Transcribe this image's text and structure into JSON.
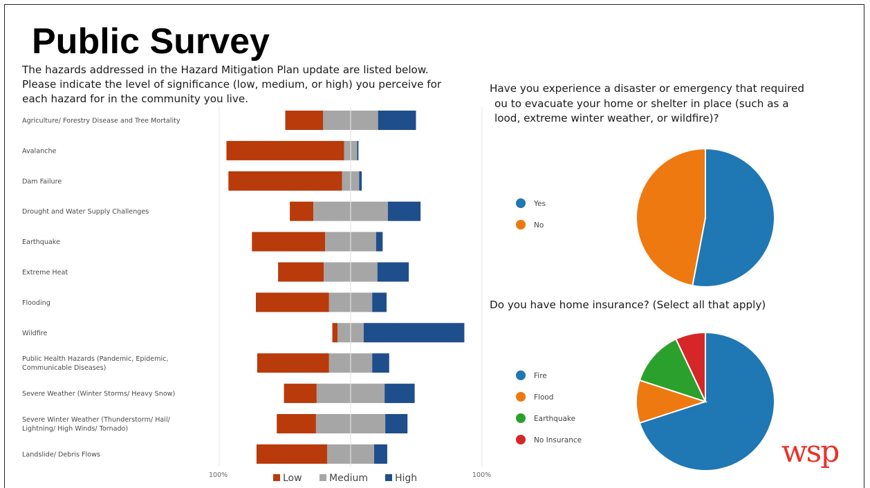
{
  "title": "Public Survey",
  "intro": [
    "The hazards addressed in the Hazard Mitigation Plan update are listed below.",
    "Please indicate the level of significance (low, medium, or high) you perceive for",
    "each hazard for in the community you live."
  ],
  "question1": [
    "Have you experience a disaster or emergency that required",
    "ou to evacuate your home or shelter in place (such as a",
    "lood, extreme winter weather, or wildfire)?"
  ],
  "question2": "Do you have home insurance? (Select all that apply)",
  "logo_text": "wsp",
  "colors": {
    "low": "#b93a0a",
    "medium": "#a6a6a6",
    "high": "#1f4e8c",
    "pie_blue": "#1f77b4",
    "pie_orange": "#ee7910",
    "pie_green": "#2ca02c",
    "pie_red": "#d62728",
    "logo": "#e8332a"
  },
  "chart_data": [
    {
      "type": "bar",
      "subtype": "diverging-stacked",
      "categories": [
        "Agriculture/ Forestry Disease and Tree Mortality",
        "Avalanche",
        "Dam Failure",
        "Drought and Water Supply Challenges",
        "Earthquake",
        "Extreme Heat",
        "Flooding",
        "Wildfire",
        "Public Health Hazards (Pandemic, Epidemic, Communicable Diseases)",
        "Severe Weather (Winter Storms/ Heavy Snow)",
        "Severe Winter Weather (Thunderstorm/ Hail/ Lightning/ High Winds/ Tornado)",
        "Landslide/ Debris Flows"
      ],
      "series": [
        {
          "name": "Low",
          "values": [
            29,
            90,
            87,
            18,
            56,
            35,
            56,
            4,
            55,
            25,
            30,
            54
          ]
        },
        {
          "name": "Medium",
          "values": [
            42,
            10,
            13,
            57,
            39,
            41,
            33,
            20,
            33,
            52,
            53,
            36
          ]
        },
        {
          "name": "High",
          "values": [
            29,
            1,
            2,
            25,
            5,
            24,
            11,
            77,
            13,
            23,
            17,
            10
          ]
        }
      ],
      "xlim": [
        -100,
        100
      ],
      "tick_labels": [
        "100%",
        "100%"
      ],
      "legend": "bottom"
    },
    {
      "type": "pie",
      "categories": [
        "Yes",
        "No"
      ],
      "values": [
        53,
        47
      ],
      "legend": "left"
    },
    {
      "type": "pie",
      "categories": [
        "Fire",
        "Flood",
        "Earthquake",
        "No Insurance"
      ],
      "values": [
        70,
        10,
        13,
        7
      ],
      "legend": "left"
    }
  ]
}
